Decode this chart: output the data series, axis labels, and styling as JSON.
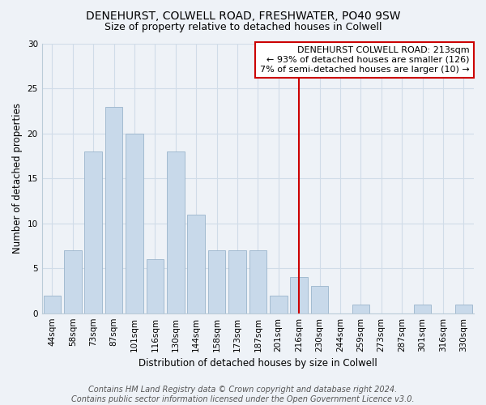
{
  "title": "DENEHURST, COLWELL ROAD, FRESHWATER, PO40 9SW",
  "subtitle": "Size of property relative to detached houses in Colwell",
  "xlabel": "Distribution of detached houses by size in Colwell",
  "ylabel": "Number of detached properties",
  "bar_labels": [
    "44sqm",
    "58sqm",
    "73sqm",
    "87sqm",
    "101sqm",
    "116sqm",
    "130sqm",
    "144sqm",
    "158sqm",
    "173sqm",
    "187sqm",
    "201sqm",
    "216sqm",
    "230sqm",
    "244sqm",
    "259sqm",
    "273sqm",
    "287sqm",
    "301sqm",
    "316sqm",
    "330sqm"
  ],
  "bar_values": [
    2,
    7,
    18,
    23,
    20,
    6,
    18,
    11,
    7,
    7,
    7,
    2,
    4,
    3,
    0,
    1,
    0,
    0,
    1,
    0,
    1
  ],
  "bar_color": "#c8d9ea",
  "bar_edgecolor": "#9ab4cb",
  "vline_index": 12,
  "vline_color": "#cc0000",
  "ylim": [
    0,
    30
  ],
  "yticks": [
    0,
    5,
    10,
    15,
    20,
    25,
    30
  ],
  "grid_color": "#d0dce8",
  "bg_color": "#eef2f7",
  "legend_title": "DENEHURST COLWELL ROAD: 213sqm",
  "legend_line1": "← 93% of detached houses are smaller (126)",
  "legend_line2": "7% of semi-detached houses are larger (10) →",
  "legend_box_edgecolor": "#cc0000",
  "footer_line1": "Contains HM Land Registry data © Crown copyright and database right 2024.",
  "footer_line2": "Contains public sector information licensed under the Open Government Licence v3.0.",
  "title_fontsize": 10,
  "subtitle_fontsize": 9,
  "axis_label_fontsize": 8.5,
  "tick_fontsize": 7.5,
  "legend_fontsize": 8,
  "footer_fontsize": 7
}
